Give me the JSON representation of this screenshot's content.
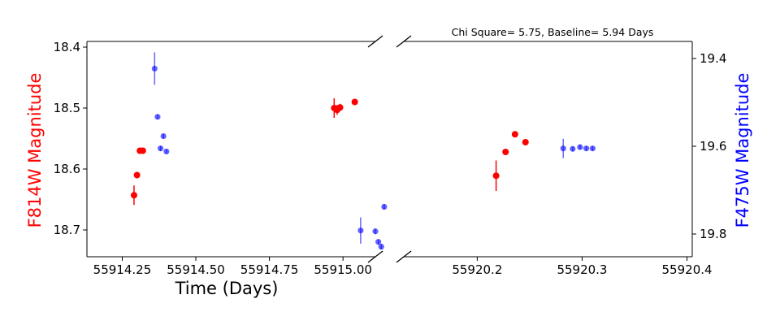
{
  "chart_data": {
    "type": "scatter",
    "title": "Chi Square= 5.75, Baseline= 5.94 Days",
    "xlabel": "Time (Days)",
    "ylabel_left": "F814W Magnitude",
    "ylabel_right": "F475W Magnitude",
    "left_color": "#ff0000",
    "right_color": "#0000ff",
    "broken_x_axis": true,
    "grid": false,
    "inverted_y": true,
    "panels": [
      {
        "xlim": [
          55914.13,
          55915.11
        ],
        "xticks": [
          55914.25,
          55914.5,
          55914.75,
          55915.0
        ],
        "xtick_labels": [
          "55914.25",
          "55914.50",
          "55914.75",
          "55915.00"
        ]
      },
      {
        "xlim": [
          55920.13,
          55920.405
        ],
        "xticks": [
          55920.2,
          55920.3,
          55920.4
        ],
        "xtick_labels": [
          "55920.2",
          "55920.3",
          "55920.4"
        ]
      }
    ],
    "left_axis": {
      "ylim": [
        18.4,
        18.7
      ],
      "ticks": [
        18.4,
        18.5,
        18.6,
        18.7
      ],
      "tick_labels": [
        "18.4",
        "18.5",
        "18.6",
        "18.7"
      ]
    },
    "right_axis": {
      "ylim": [
        19.4,
        19.8
      ],
      "ticks": [
        19.4,
        19.6,
        19.8
      ],
      "tick_labels": [
        "19.4",
        "19.6",
        "19.8"
      ]
    },
    "series": [
      {
        "name": "F814W",
        "axis": "left",
        "color": "#ff0000",
        "points": [
          {
            "x": 55914.29,
            "y": 18.643,
            "err": 0.016
          },
          {
            "x": 55914.3,
            "y": 18.61,
            "err": 0.004
          },
          {
            "x": 55914.31,
            "y": 18.57,
            "err": 0.004
          },
          {
            "x": 55914.32,
            "y": 18.57,
            "err": 0.004
          },
          {
            "x": 55914.97,
            "y": 18.5,
            "err": 0.016
          },
          {
            "x": 55914.98,
            "y": 18.503,
            "err": 0.008
          },
          {
            "x": 55914.99,
            "y": 18.499,
            "err": 0.006
          },
          {
            "x": 55915.04,
            "y": 18.49,
            "err": 0.004
          },
          {
            "x": 55920.218,
            "y": 18.611,
            "err": 0.025
          },
          {
            "x": 55920.227,
            "y": 18.572,
            "err": 0.005
          },
          {
            "x": 55920.236,
            "y": 18.543,
            "err": 0.004
          },
          {
            "x": 55920.246,
            "y": 18.556,
            "err": 0.004
          }
        ]
      },
      {
        "name": "F475W",
        "axis": "right",
        "color": "#0000ff",
        "points": [
          {
            "x": 55914.36,
            "y": 19.423,
            "err": 0.037
          },
          {
            "x": 55914.37,
            "y": 19.533,
            "err": 0.005
          },
          {
            "x": 55914.38,
            "y": 19.605,
            "err": 0.006
          },
          {
            "x": 55914.39,
            "y": 19.577,
            "err": 0.005
          },
          {
            "x": 55914.4,
            "y": 19.612,
            "err": 0.005
          },
          {
            "x": 55915.06,
            "y": 19.792,
            "err": 0.03
          },
          {
            "x": 55915.11,
            "y": 19.794,
            "err": 0.006
          },
          {
            "x": 55915.12,
            "y": 19.818,
            "err": 0.006
          },
          {
            "x": 55915.13,
            "y": 19.829,
            "err": 0.006
          },
          {
            "x": 55915.14,
            "y": 19.738,
            "err": 0.006
          },
          {
            "x": 55920.282,
            "y": 19.605,
            "err": 0.022
          },
          {
            "x": 55920.291,
            "y": 19.606,
            "err": 0.005
          },
          {
            "x": 55920.298,
            "y": 19.602,
            "err": 0.005
          },
          {
            "x": 55920.304,
            "y": 19.605,
            "err": 0.005
          },
          {
            "x": 55920.31,
            "y": 19.605,
            "err": 0.005
          }
        ]
      }
    ]
  }
}
